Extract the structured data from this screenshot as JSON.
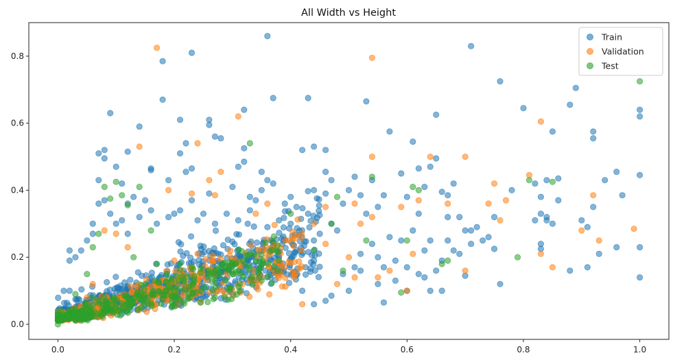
{
  "chart_data": {
    "type": "scatter",
    "title": "All Width vs Height",
    "xlabel": "",
    "ylabel": "",
    "xlim": [
      -0.05,
      1.05
    ],
    "ylim": [
      -0.045,
      0.9
    ],
    "xticks": [
      "0.0",
      "0.2",
      "0.4",
      "0.6",
      "0.8",
      "1.0"
    ],
    "yticks": [
      "0.0",
      "0.2",
      "0.4",
      "0.6",
      "0.8"
    ],
    "grid": false,
    "legend_position": "top-right",
    "series": [
      {
        "name": "Train",
        "color": "#1f77b4",
        "points": [
          [
            0.36,
            0.86
          ],
          [
            0.23,
            0.81
          ],
          [
            0.18,
            0.785
          ],
          [
            0.71,
            0.83
          ],
          [
            0.18,
            0.67
          ],
          [
            0.37,
            0.675
          ],
          [
            0.43,
            0.675
          ],
          [
            0.09,
            0.63
          ],
          [
            0.32,
            0.64
          ],
          [
            0.53,
            0.665
          ],
          [
            0.14,
            0.59
          ],
          [
            0.21,
            0.61
          ],
          [
            0.26,
            0.61
          ],
          [
            0.26,
            0.595
          ],
          [
            0.27,
            0.56
          ],
          [
            0.28,
            0.555
          ],
          [
            0.57,
            0.575
          ],
          [
            0.65,
            0.625
          ],
          [
            0.76,
            0.725
          ],
          [
            0.8,
            0.645
          ],
          [
            0.85,
            0.575
          ],
          [
            0.88,
            0.655
          ],
          [
            0.89,
            0.705
          ],
          [
            0.92,
            0.575
          ],
          [
            0.92,
            0.555
          ],
          [
            1.0,
            0.64
          ],
          [
            1.0,
            0.62
          ],
          [
            0.22,
            0.54
          ],
          [
            0.32,
            0.525
          ],
          [
            0.42,
            0.52
          ],
          [
            0.44,
            0.53
          ],
          [
            0.46,
            0.52
          ],
          [
            0.61,
            0.545
          ],
          [
            0.07,
            0.51
          ],
          [
            0.08,
            0.52
          ],
          [
            0.12,
            0.515
          ],
          [
            0.08,
            0.495
          ],
          [
            0.1,
            0.47
          ],
          [
            0.16,
            0.465
          ],
          [
            0.21,
            0.51
          ],
          [
            0.22,
            0.455
          ],
          [
            0.23,
            0.465
          ],
          [
            0.31,
            0.47
          ],
          [
            0.32,
            0.485
          ],
          [
            0.35,
            0.455
          ],
          [
            0.46,
            0.455
          ],
          [
            0.51,
            0.44
          ],
          [
            0.54,
            0.43
          ],
          [
            0.59,
            0.45
          ],
          [
            0.62,
            0.465
          ],
          [
            0.64,
            0.47
          ],
          [
            0.65,
            0.495
          ],
          [
            0.07,
            0.43
          ],
          [
            0.19,
            0.43
          ],
          [
            0.36,
            0.43
          ],
          [
            0.37,
            0.42
          ],
          [
            0.47,
            0.43
          ],
          [
            0.56,
            0.385
          ],
          [
            0.63,
            0.41
          ],
          [
            0.66,
            0.395
          ],
          [
            0.67,
            0.385
          ],
          [
            0.68,
            0.42
          ],
          [
            0.78,
            0.4
          ],
          [
            0.82,
            0.42
          ],
          [
            0.83,
            0.38
          ],
          [
            0.84,
            0.43
          ],
          [
            0.86,
            0.435
          ],
          [
            0.86,
            0.37
          ],
          [
            0.94,
            0.43
          ],
          [
            0.96,
            0.455
          ],
          [
            0.97,
            0.385
          ],
          [
            1.0,
            0.445
          ],
          [
            0.3,
            0.41
          ],
          [
            0.33,
            0.38
          ],
          [
            0.4,
            0.38
          ],
          [
            0.44,
            0.4
          ],
          [
            0.5,
            0.4
          ],
          [
            0.52,
            0.385
          ],
          [
            0.55,
            0.35
          ],
          [
            0.6,
            0.38
          ],
          [
            0.62,
            0.33
          ],
          [
            0.67,
            0.32
          ],
          [
            0.69,
            0.32
          ],
          [
            0.7,
            0.28
          ],
          [
            0.72,
            0.29
          ],
          [
            0.75,
            0.32
          ],
          [
            0.83,
            0.33
          ],
          [
            0.84,
            0.32
          ],
          [
            0.84,
            0.31
          ],
          [
            0.85,
            0.3
          ],
          [
            0.9,
            0.31
          ],
          [
            0.91,
            0.29
          ],
          [
            0.92,
            0.35
          ],
          [
            0.82,
            0.31
          ],
          [
            0.73,
            0.25
          ],
          [
            0.74,
            0.26
          ],
          [
            0.71,
            0.24
          ],
          [
            0.68,
            0.22
          ],
          [
            0.69,
            0.21
          ],
          [
            0.66,
            0.19
          ],
          [
            0.65,
            0.16
          ],
          [
            0.63,
            0.14
          ],
          [
            0.62,
            0.15
          ],
          [
            0.6,
            0.17
          ],
          [
            0.58,
            0.13
          ],
          [
            0.55,
            0.12
          ],
          [
            0.56,
            0.065
          ],
          [
            0.6,
            0.1
          ],
          [
            0.64,
            0.1
          ],
          [
            0.66,
            0.1
          ],
          [
            0.7,
            0.145
          ],
          [
            0.75,
            0.225
          ],
          [
            0.76,
            0.12
          ],
          [
            0.83,
            0.24
          ],
          [
            0.83,
            0.225
          ],
          [
            0.88,
            0.16
          ],
          [
            0.91,
            0.17
          ],
          [
            0.93,
            0.21
          ],
          [
            0.96,
            0.23
          ],
          [
            1.0,
            0.23
          ],
          [
            1.0,
            0.14
          ],
          [
            0.46,
            0.07
          ],
          [
            0.49,
            0.15
          ],
          [
            0.51,
            0.17
          ],
          [
            0.54,
            0.24
          ],
          [
            0.57,
            0.26
          ],
          [
            0.59,
            0.25
          ],
          [
            0.61,
            0.28
          ],
          [
            0.63,
            0.22
          ],
          [
            0.53,
            0.33
          ],
          [
            0.48,
            0.28
          ],
          [
            0.47,
            0.3
          ],
          [
            0.45,
            0.27
          ],
          [
            0.43,
            0.33
          ],
          [
            0.41,
            0.35
          ],
          [
            0.4,
            0.3
          ],
          [
            0.38,
            0.31
          ],
          [
            0.36,
            0.29
          ],
          [
            0.34,
            0.37
          ],
          [
            0.33,
            0.34
          ],
          [
            0.31,
            0.31
          ],
          [
            0.29,
            0.33
          ],
          [
            0.27,
            0.3
          ],
          [
            0.25,
            0.33
          ],
          [
            0.24,
            0.31
          ],
          [
            0.23,
            0.37
          ],
          [
            0.21,
            0.34
          ],
          [
            0.2,
            0.33
          ],
          [
            0.19,
            0.32
          ],
          [
            0.17,
            0.3
          ],
          [
            0.16,
            0.34
          ],
          [
            0.15,
            0.37
          ],
          [
            0.14,
            0.32
          ],
          [
            0.13,
            0.38
          ],
          [
            0.12,
            0.36
          ],
          [
            0.11,
            0.31
          ],
          [
            0.1,
            0.3
          ],
          [
            0.09,
            0.33
          ],
          [
            0.08,
            0.37
          ],
          [
            0.07,
            0.36
          ],
          [
            0.06,
            0.3
          ],
          [
            0.06,
            0.27
          ],
          [
            0.05,
            0.25
          ],
          [
            0.04,
            0.22
          ],
          [
            0.03,
            0.2
          ],
          [
            0.02,
            0.22
          ],
          [
            0.02,
            0.19
          ],
          [
            0.01,
            0.1
          ],
          [
            0.02,
            0.1
          ],
          [
            0.42,
            0.1
          ],
          [
            0.44,
            0.06
          ],
          [
            0.47,
            0.085
          ],
          [
            0.5,
            0.1
          ],
          [
            0.52,
            0.21
          ],
          [
            0.55,
            0.2
          ],
          [
            0.58,
            0.19
          ],
          [
            0.64,
            0.25
          ],
          [
            0.67,
            0.25
          ],
          [
            0.71,
            0.28
          ],
          [
            0.16,
            0.46
          ],
          [
            0.11,
            0.42
          ],
          [
            0.26,
            0.39
          ],
          [
            0.35,
            0.4
          ],
          [
            0.46,
            0.39
          ],
          [
            0.49,
            0.36
          ],
          [
            0.39,
            0.36
          ],
          [
            0.12,
            0.27
          ],
          [
            0.44,
            0.19
          ],
          [
            0.52,
            0.16
          ],
          [
            0.56,
            0.17
          ]
        ],
        "cluster": {
          "x_range": [
            0.0,
            0.45
          ],
          "y_slope": 0.55,
          "y_spread": 0.13,
          "count": 900
        }
      },
      {
        "name": "Validation",
        "color": "#ff7f0e",
        "points": [
          [
            0.17,
            0.825
          ],
          [
            0.54,
            0.795
          ],
          [
            0.31,
            0.62
          ],
          [
            0.83,
            0.605
          ],
          [
            0.14,
            0.53
          ],
          [
            0.24,
            0.54
          ],
          [
            0.54,
            0.5
          ],
          [
            0.64,
            0.5
          ],
          [
            0.7,
            0.5
          ],
          [
            0.19,
            0.4
          ],
          [
            0.26,
            0.43
          ],
          [
            0.28,
            0.455
          ],
          [
            0.23,
            0.39
          ],
          [
            0.27,
            0.385
          ],
          [
            0.34,
            0.33
          ],
          [
            0.36,
            0.36
          ],
          [
            0.46,
            0.35
          ],
          [
            0.51,
            0.36
          ],
          [
            0.54,
            0.32
          ],
          [
            0.59,
            0.35
          ],
          [
            0.62,
            0.37
          ],
          [
            0.67,
            0.36
          ],
          [
            0.74,
            0.36
          ],
          [
            0.75,
            0.42
          ],
          [
            0.77,
            0.37
          ],
          [
            0.81,
            0.445
          ],
          [
            0.92,
            0.385
          ],
          [
            0.76,
            0.31
          ],
          [
            0.9,
            0.28
          ],
          [
            0.93,
            0.25
          ],
          [
            0.99,
            0.285
          ],
          [
            0.85,
            0.17
          ],
          [
            0.83,
            0.21
          ],
          [
            0.7,
            0.16
          ],
          [
            0.61,
            0.21
          ],
          [
            0.6,
            0.1
          ],
          [
            0.57,
            0.16
          ],
          [
            0.55,
            0.14
          ],
          [
            0.51,
            0.14
          ],
          [
            0.48,
            0.12
          ],
          [
            0.42,
            0.06
          ],
          [
            0.39,
            0.17
          ],
          [
            0.35,
            0.14
          ],
          [
            0.33,
            0.13
          ],
          [
            0.3,
            0.1
          ],
          [
            0.24,
            0.21
          ],
          [
            0.2,
            0.19
          ],
          [
            0.17,
            0.12
          ],
          [
            0.12,
            0.23
          ],
          [
            0.1,
            0.27
          ],
          [
            0.08,
            0.28
          ],
          [
            0.06,
            0.12
          ],
          [
            0.05,
            0.08
          ],
          [
            0.44,
            0.3
          ],
          [
            0.46,
            0.24
          ],
          [
            0.5,
            0.2
          ],
          [
            0.52,
            0.3
          ]
        ],
        "cluster": {
          "x_range": [
            0.0,
            0.42
          ],
          "y_slope": 0.5,
          "y_spread": 0.09,
          "count": 420
        }
      },
      {
        "name": "Test",
        "color": "#2ca02c",
        "points": [
          [
            1.0,
            0.725
          ],
          [
            0.33,
            0.54
          ],
          [
            0.08,
            0.41
          ],
          [
            0.1,
            0.425
          ],
          [
            0.14,
            0.41
          ],
          [
            0.54,
            0.44
          ],
          [
            0.61,
            0.41
          ],
          [
            0.62,
            0.4
          ],
          [
            0.81,
            0.43
          ],
          [
            0.85,
            0.425
          ],
          [
            0.11,
            0.385
          ],
          [
            0.09,
            0.375
          ],
          [
            0.12,
            0.355
          ],
          [
            0.07,
            0.27
          ],
          [
            0.16,
            0.28
          ],
          [
            0.4,
            0.33
          ],
          [
            0.47,
            0.3
          ],
          [
            0.48,
            0.38
          ],
          [
            0.53,
            0.25
          ],
          [
            0.6,
            0.25
          ],
          [
            0.66,
            0.18
          ],
          [
            0.67,
            0.19
          ],
          [
            0.79,
            0.2
          ],
          [
            0.59,
            0.095
          ],
          [
            0.49,
            0.16
          ],
          [
            0.44,
            0.22
          ],
          [
            0.38,
            0.19
          ],
          [
            0.35,
            0.13
          ],
          [
            0.31,
            0.16
          ],
          [
            0.27,
            0.13
          ],
          [
            0.23,
            0.17
          ],
          [
            0.2,
            0.11
          ],
          [
            0.17,
            0.18
          ],
          [
            0.15,
            0.12
          ],
          [
            0.13,
            0.2
          ],
          [
            0.06,
            0.23
          ],
          [
            0.05,
            0.15
          ],
          [
            0.03,
            0.09
          ],
          [
            0.0,
            0.0
          ],
          [
            0.02,
            0.04
          ]
        ],
        "cluster": {
          "x_range": [
            0.0,
            0.38
          ],
          "y_slope": 0.5,
          "y_spread": 0.08,
          "count": 380
        }
      }
    ]
  }
}
